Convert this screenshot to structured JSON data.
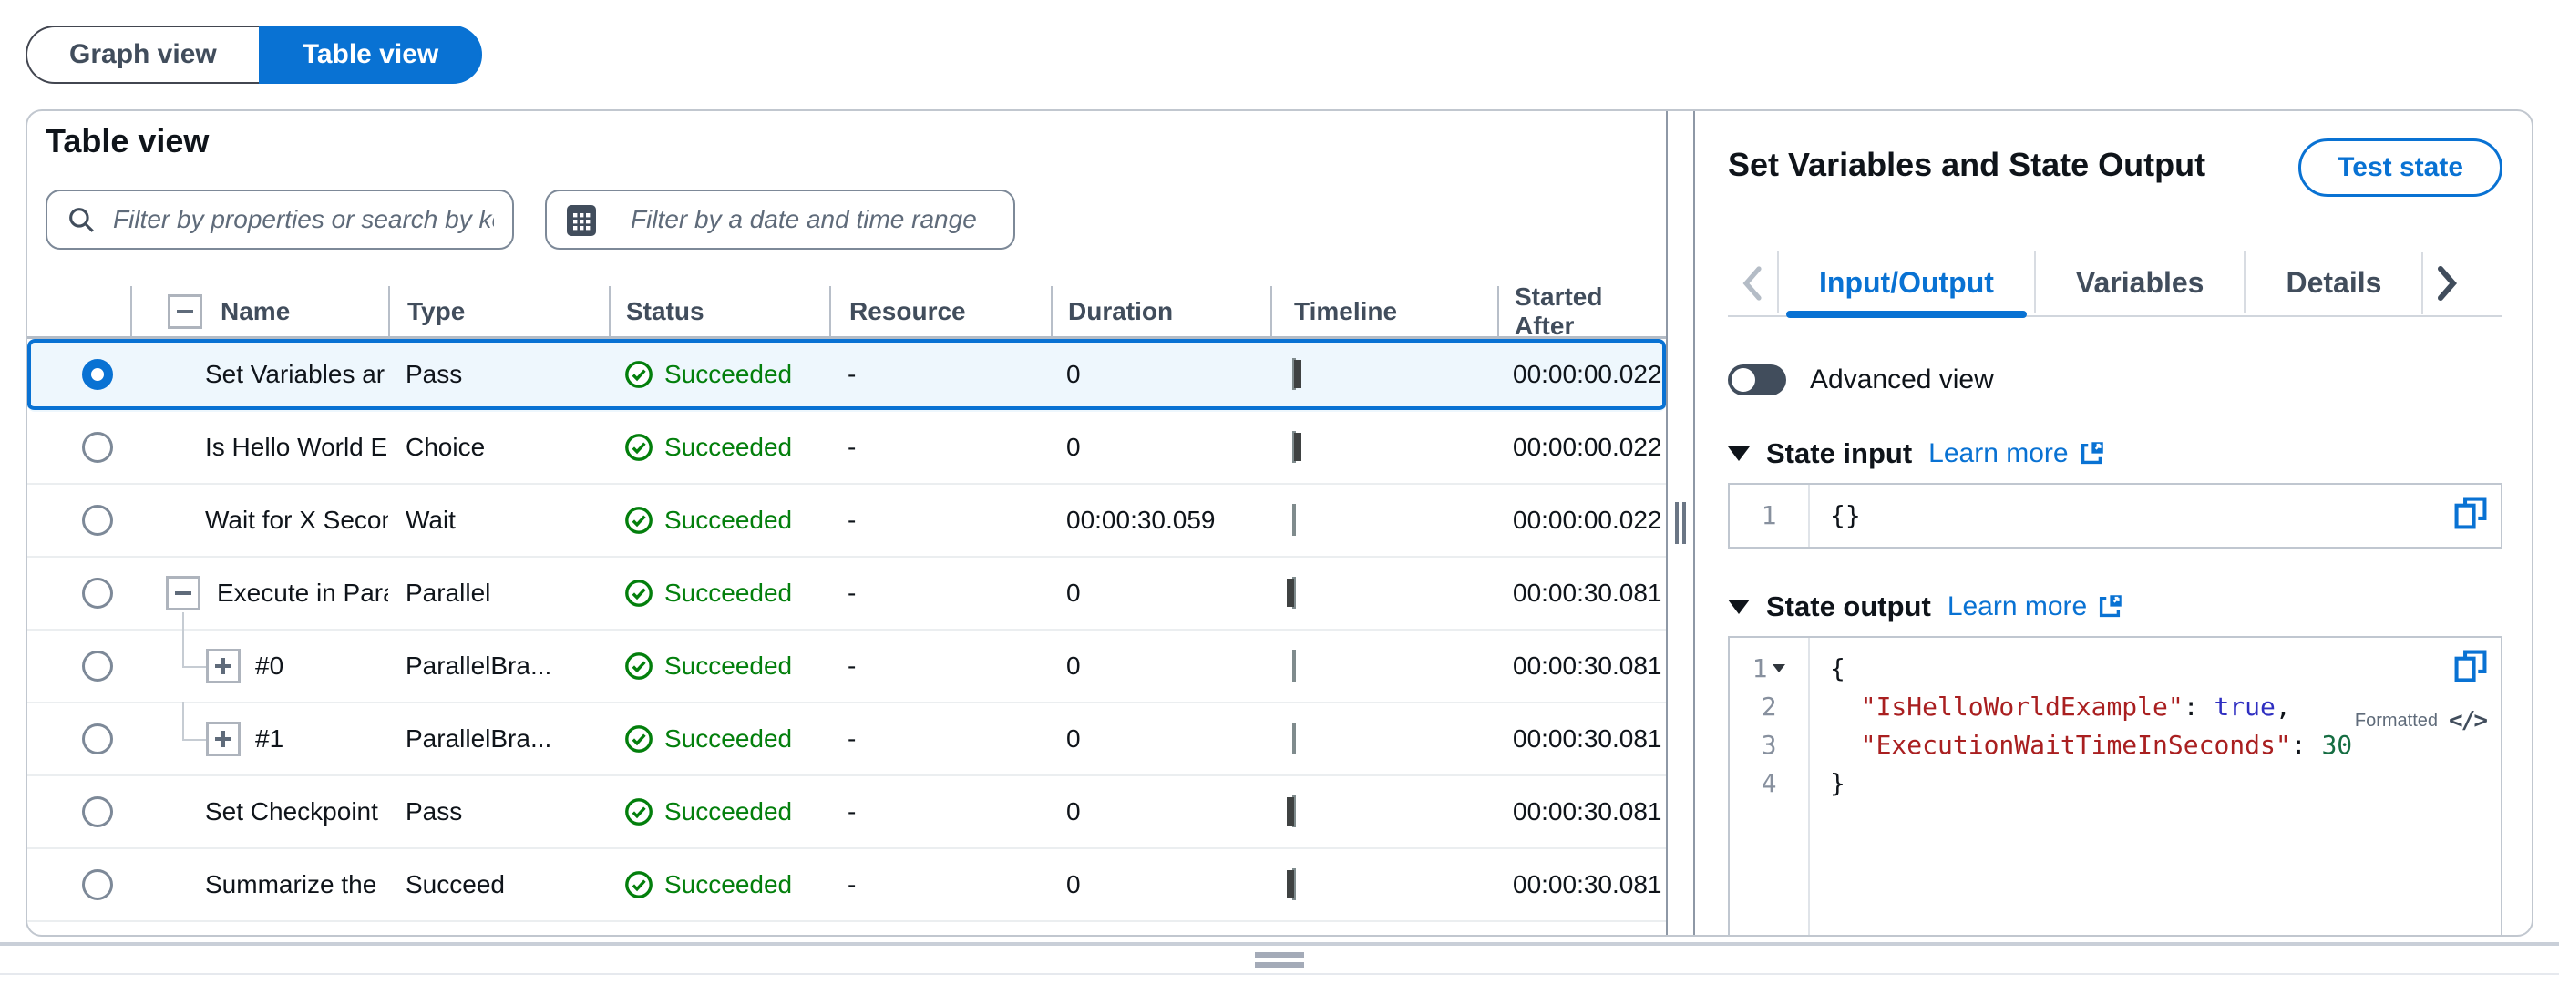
{
  "view_toggle": {
    "graph_label": "Graph view",
    "table_label": "Table view"
  },
  "table_panel": {
    "title": "Table view",
    "property_filter_placeholder": "Filter by properties or search by ke",
    "date_filter_placeholder": "Filter by a date and time range",
    "columns": {
      "name": "Name",
      "type": "Type",
      "status": "Status",
      "resource": "Resource",
      "duration": "Duration",
      "timeline": "Timeline",
      "started_after": "Started After"
    },
    "rows": [
      {
        "name": "Set Variables ar",
        "type": "Pass",
        "status": "Succeeded",
        "resource": "-",
        "duration": "0",
        "timeline": "tick-left",
        "started_after": "00:00:00.022",
        "selected": true,
        "tree": "none"
      },
      {
        "name": "Is Hello World E",
        "type": "Choice",
        "status": "Succeeded",
        "resource": "-",
        "duration": "0",
        "timeline": "tick-left",
        "started_after": "00:00:00.022",
        "selected": false,
        "tree": "none"
      },
      {
        "name": "Wait for X Secon",
        "type": "Wait",
        "status": "Succeeded",
        "resource": "-",
        "duration": "00:00:30.059",
        "timeline": "bar-full",
        "started_after": "00:00:00.022",
        "selected": false,
        "tree": "none"
      },
      {
        "name": "Execute in Para",
        "type": "Parallel",
        "status": "Succeeded",
        "resource": "-",
        "duration": "0",
        "timeline": "tick-right",
        "started_after": "00:00:30.081",
        "selected": false,
        "tree": "parent"
      },
      {
        "name": "#0",
        "type": "ParallelBra...",
        "status": "Succeeded",
        "resource": "-",
        "duration": "0",
        "timeline": "plain",
        "started_after": "00:00:30.081",
        "selected": false,
        "tree": "child"
      },
      {
        "name": "#1",
        "type": "ParallelBra...",
        "status": "Succeeded",
        "resource": "-",
        "duration": "0",
        "timeline": "plain",
        "started_after": "00:00:30.081",
        "selected": false,
        "tree": "child"
      },
      {
        "name": "Set Checkpoint",
        "type": "Pass",
        "status": "Succeeded",
        "resource": "-",
        "duration": "0",
        "timeline": "tick-right",
        "started_after": "00:00:30.081",
        "selected": false,
        "tree": "none"
      },
      {
        "name": "Summarize the",
        "type": "Succeed",
        "status": "Succeeded",
        "resource": "-",
        "duration": "0",
        "timeline": "tick-right",
        "started_after": "00:00:30.081",
        "selected": false,
        "tree": "none"
      }
    ]
  },
  "details_panel": {
    "title": "Set Variables and State Output",
    "test_state_label": "Test state",
    "tabs": [
      {
        "label": "Input/Output",
        "active": true
      },
      {
        "label": "Variables",
        "active": false
      },
      {
        "label": "Details",
        "active": false
      }
    ],
    "advanced_view_label": "Advanced view",
    "learn_more_label": "Learn more",
    "state_input": {
      "title": "State input",
      "lines": [
        {
          "num": "1",
          "caret": false,
          "tokens": [
            {
              "t": "plain",
              "v": "{}"
            }
          ]
        }
      ]
    },
    "state_output": {
      "title": "State output",
      "formatted_label": "Formatted",
      "code_icon_glyph": "</>",
      "lines": [
        {
          "num": "1",
          "caret": true,
          "tokens": [
            {
              "t": "plain",
              "v": "{"
            }
          ]
        },
        {
          "num": "2",
          "caret": false,
          "tokens": [
            {
              "t": "plain",
              "v": "  "
            },
            {
              "t": "key",
              "v": "\"IsHelloWorldExample\""
            },
            {
              "t": "plain",
              "v": ": "
            },
            {
              "t": "bool",
              "v": "true"
            },
            {
              "t": "plain",
              "v": ","
            }
          ]
        },
        {
          "num": "3",
          "caret": false,
          "tokens": [
            {
              "t": "plain",
              "v": "  "
            },
            {
              "t": "key",
              "v": "\"ExecutionWaitTimeInSeconds\""
            },
            {
              "t": "plain",
              "v": ": "
            },
            {
              "t": "num",
              "v": "30"
            }
          ]
        },
        {
          "num": "4",
          "caret": false,
          "tokens": [
            {
              "t": "plain",
              "v": "}"
            }
          ]
        }
      ]
    }
  },
  "colors": {
    "accent": "#0972d3",
    "success": "#037f0c",
    "selected_row_bg": "#eef7fd",
    "code_key": "#a91f20",
    "code_bool": "#2f2fc1",
    "code_num": "#156d42"
  }
}
